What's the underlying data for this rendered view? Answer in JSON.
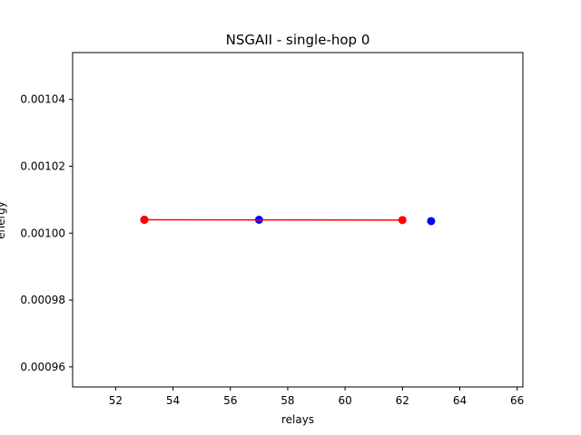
{
  "chart_data": {
    "type": "scatter",
    "title": "NSGAII - single-hop 0",
    "xlabel": "relays",
    "ylabel": "energy",
    "xlim": [
      50.5,
      66.2
    ],
    "ylim": [
      0.000954,
      0.001054
    ],
    "xticks": [
      "52",
      "54",
      "56",
      "58",
      "60",
      "62",
      "64",
      "66"
    ],
    "yticks": [
      "0.00096",
      "0.00098",
      "0.00100",
      "0.00102",
      "0.00104"
    ],
    "grid": false,
    "series": [
      {
        "color": "#0000ff",
        "style": "scatter",
        "points": [
          [
            53,
            0.001004
          ],
          [
            57,
            0.001004
          ],
          [
            63,
            0.0010036
          ]
        ]
      },
      {
        "color": "#ff0000",
        "style": "line-markers",
        "points": [
          [
            53,
            0.001004
          ],
          [
            62,
            0.0010039
          ]
        ]
      }
    ]
  }
}
